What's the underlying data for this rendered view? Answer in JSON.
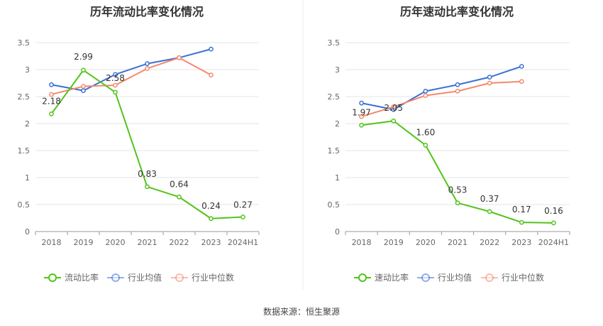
{
  "source": "数据来源：恒生聚源",
  "colors": {
    "primary": "#52c41a",
    "avg": "#3b6fd6",
    "median": "#f4896b",
    "grid": "#e6e6e6",
    "axis": "#999999"
  },
  "legend": [
    "流动比率",
    "行业均值",
    "行业中位数"
  ],
  "chart_data": [
    {
      "type": "line",
      "title": "历年流动比率变化情况",
      "categories": [
        "2018",
        "2019",
        "2020",
        "2021",
        "2022",
        "2023",
        "2024H1"
      ],
      "ylim": [
        0,
        3.5
      ],
      "yticks": [
        "0",
        "0.5",
        "1",
        "1.5",
        "2",
        "2.5",
        "3",
        "3.5"
      ],
      "legend": [
        "流动比率",
        "行业均值",
        "行业中位数"
      ],
      "series": [
        {
          "name": "流动比率",
          "values": [
            2.18,
            2.99,
            2.58,
            0.83,
            0.64,
            0.24,
            0.27
          ],
          "labels": [
            "2.18",
            "2.99",
            "2.58",
            "0.83",
            "0.64",
            "0.24",
            "0.27"
          ]
        },
        {
          "name": "行业均值",
          "values": [
            2.72,
            2.61,
            2.91,
            3.11,
            3.22,
            3.38,
            null
          ]
        },
        {
          "name": "行业中位数",
          "values": [
            2.54,
            2.69,
            2.71,
            3.02,
            3.22,
            2.9,
            null
          ]
        }
      ]
    },
    {
      "type": "line",
      "title": "历年速动比率变化情况",
      "categories": [
        "2018",
        "2019",
        "2020",
        "2021",
        "2022",
        "2023",
        "2024H1"
      ],
      "ylim": [
        0,
        3.5
      ],
      "yticks": [
        "0",
        "0.5",
        "1",
        "1.5",
        "2",
        "2.5",
        "3",
        "3.5"
      ],
      "legend": [
        "速动比率",
        "行业均值",
        "行业中位数"
      ],
      "series": [
        {
          "name": "速动比率",
          "values": [
            1.97,
            2.05,
            1.6,
            0.53,
            0.37,
            0.17,
            0.16
          ],
          "labels": [
            "1.97",
            "2.05",
            "1.60",
            "0.53",
            "0.37",
            "0.17",
            "0.16"
          ]
        },
        {
          "name": "行业均值",
          "values": [
            2.38,
            2.26,
            2.6,
            2.72,
            2.86,
            3.06,
            null
          ]
        },
        {
          "name": "行业中位数",
          "values": [
            2.13,
            2.31,
            2.52,
            2.6,
            2.75,
            2.78,
            null
          ]
        }
      ]
    }
  ]
}
